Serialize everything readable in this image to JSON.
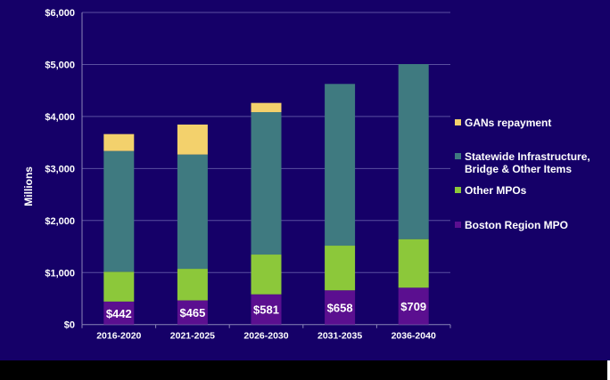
{
  "chart_data": {
    "type": "bar",
    "stacked": true,
    "title": "",
    "xlabel": "",
    "ylabel": "Millions",
    "ylim": [
      0,
      6000
    ],
    "yticks": [
      "$0",
      "$1,000",
      "$2,000",
      "$3,000",
      "$4,000",
      "$5,000",
      "$6,000"
    ],
    "grid": true,
    "legend_position": "right",
    "categories": [
      "2016-2020",
      "2021-2025",
      "2026-2030",
      "2031-2035",
      "2036-2040"
    ],
    "series": [
      {
        "name": "Boston Region MPO",
        "color": "#5b0f90",
        "values": [
          442,
          465,
          581,
          658,
          709
        ],
        "labels": [
          "$442",
          "$465",
          "$581",
          "$658",
          "$709"
        ]
      },
      {
        "name": "Other MPOs",
        "color": "#8cc83a",
        "values": [
          573,
          607,
          765,
          859,
          934
        ]
      },
      {
        "name": "Statewide Infrastructure, Bridge & Other Items",
        "color": "#3f7a80",
        "values": [
          2322,
          2197,
          2738,
          3109,
          3365
        ]
      },
      {
        "name": "GANs repayment",
        "color": "#f3d16c",
        "values": [
          325,
          576,
          177,
          0,
          0
        ]
      }
    ]
  },
  "legend": [
    {
      "lines": [
        "GANs repayment"
      ],
      "color": "#f3d16c"
    },
    {
      "lines": [
        "Statewide Infrastructure,",
        "Bridge & Other Items"
      ],
      "color": "#3f7a80"
    },
    {
      "lines": [
        "Other MPOs"
      ],
      "color": "#8cc83a"
    },
    {
      "lines": [
        "Boston Region MPO"
      ],
      "color": "#5b0f90"
    }
  ]
}
